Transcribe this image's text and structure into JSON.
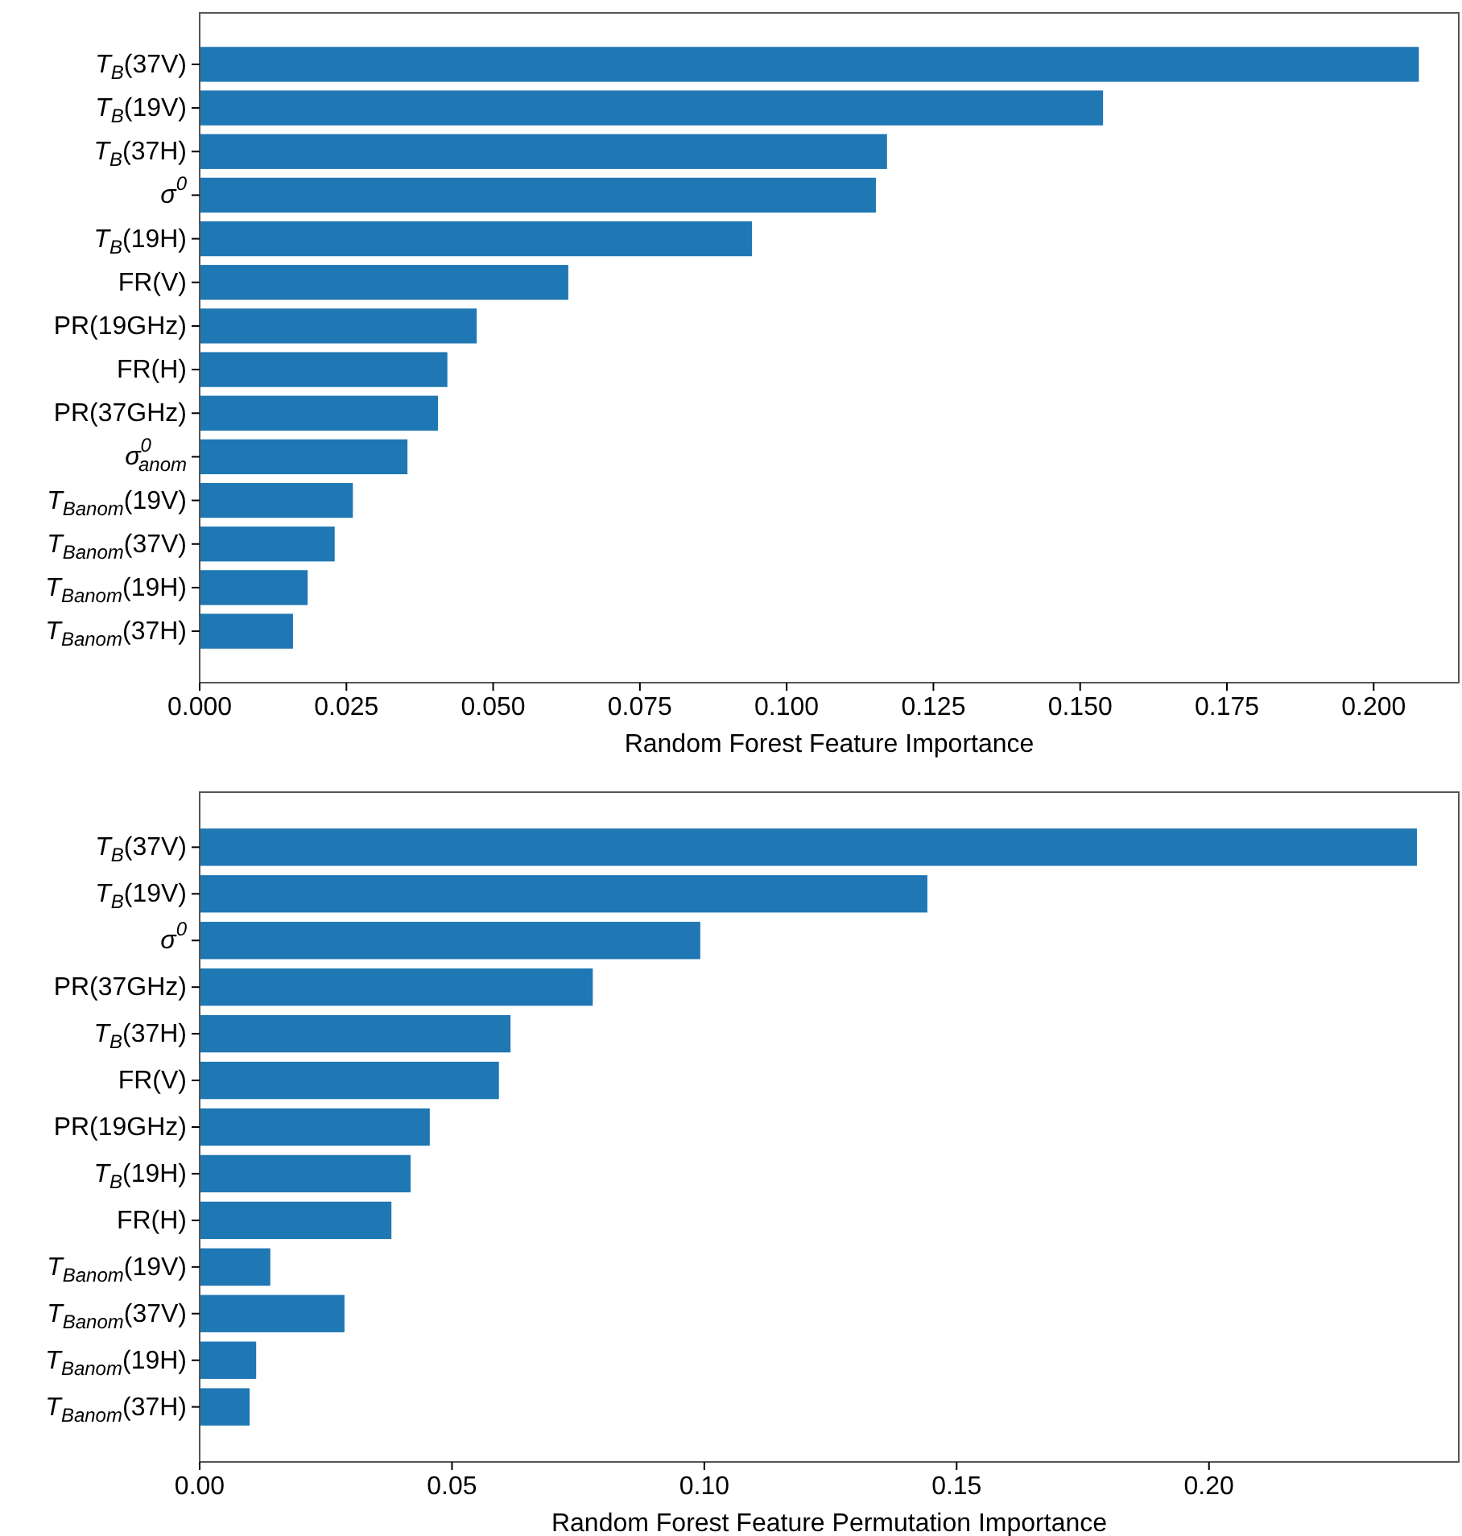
{
  "chart_data": [
    {
      "type": "bar",
      "orientation": "horizontal",
      "xlabel": "Random Forest Feature Importance",
      "color": "#1f77b4",
      "categories": [
        "T$_{B}$(37V)",
        "T$_{B}$(19V)",
        "T$_{B}$(37H)",
        "σ$^{0}$",
        "T$_{B}$(19H)",
        "FR(V)",
        "PR(19GHz)",
        "FR(H)",
        "PR(37GHz)",
        "σ$^{0}$$_{anom}$",
        "T$_{Banom}$(19V)",
        "T$_{Banom}$(37V)",
        "T$_{Banom}$(19H)",
        "T$_{Banom}$(37H)"
      ],
      "values": [
        0.2077,
        0.1539,
        0.1171,
        0.1152,
        0.0941,
        0.0628,
        0.0472,
        0.0422,
        0.0406,
        0.0354,
        0.0261,
        0.023,
        0.0184,
        0.0159
      ],
      "xlim": [
        0,
        0.2145
      ],
      "xticks": [
        {
          "value": 0,
          "label": "0.000"
        },
        {
          "value": 0.025,
          "label": "0.025"
        },
        {
          "value": 0.05,
          "label": "0.050"
        },
        {
          "value": 0.075,
          "label": "0.075"
        },
        {
          "value": 0.1,
          "label": "0.100"
        },
        {
          "value": 0.125,
          "label": "0.125"
        },
        {
          "value": 0.15,
          "label": "0.150"
        },
        {
          "value": 0.175,
          "label": "0.175"
        },
        {
          "value": 0.2,
          "label": "0.200"
        }
      ]
    },
    {
      "type": "bar",
      "orientation": "horizontal",
      "xlabel": "Random Forest Feature Permutation Importance",
      "color": "#1f77b4",
      "categories": [
        "T$_{B}$(37V)",
        "T$_{B}$(19V)",
        "σ$^{0}$",
        "PR(37GHz)",
        "T$_{B}$(37H)",
        "FR(V)",
        "PR(19GHz)",
        "T$_{B}$(19H)",
        "FR(H)",
        "T$_{Banom}$(19V)",
        "T$_{Banom}$(37V)",
        "T$_{Banom}$(19H)",
        "T$_{Banom}$(37H)"
      ],
      "values": [
        0.2412,
        0.1442,
        0.0992,
        0.0779,
        0.0616,
        0.0593,
        0.0456,
        0.0418,
        0.038,
        0.014,
        0.0287,
        0.0112,
        0.0099
      ],
      "xlim": [
        0,
        0.2495
      ],
      "xticks": [
        {
          "value": 0,
          "label": "0.00"
        },
        {
          "value": 0.05,
          "label": "0.05"
        },
        {
          "value": 0.1,
          "label": "0.10"
        },
        {
          "value": 0.15,
          "label": "0.15"
        },
        {
          "value": 0.2,
          "label": "0.20"
        }
      ]
    }
  ]
}
